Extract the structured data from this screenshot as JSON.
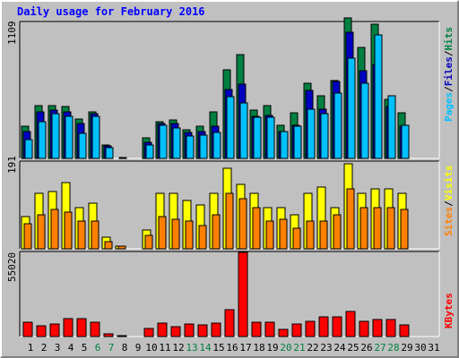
{
  "title": "Daily usage for February 2016",
  "colors": {
    "hits": "#008040",
    "files": "#0000c0",
    "pages": "#00c0ff",
    "visits": "#ffff00",
    "sites": "#ff8000",
    "kbytes": "#ff0000",
    "weekend_label": "#008040",
    "weekday_label": "#000000",
    "panel_bg": "#c0c0c0"
  },
  "chart_data": [
    {
      "type": "bar",
      "title": "Daily usage for February 2016",
      "panel": "top",
      "ylabel_parts": [
        "Pages",
        "/",
        "Files",
        "/",
        "Hits"
      ],
      "ytick_label": "1109",
      "ylim": [
        0,
        1109
      ],
      "categories": [
        "1",
        "2",
        "3",
        "4",
        "5",
        "6",
        "7",
        "8",
        "9",
        "10",
        "11",
        "12",
        "13",
        "14",
        "15",
        "16",
        "17",
        "18",
        "19",
        "20",
        "21",
        "22",
        "23",
        "24",
        "25",
        "26",
        "27",
        "28",
        "29",
        "30",
        "31"
      ],
      "series": [
        {
          "name": "Hits",
          "color_key": "hits",
          "values": [
            260,
            430,
            430,
            420,
            320,
            380,
            110,
            0,
            0,
            170,
            300,
            310,
            230,
            260,
            380,
            720,
            840,
            390,
            430,
            270,
            370,
            610,
            510,
            630,
            1140,
            900,
            1090,
            480,
            370,
            0,
            0
          ]
        },
        {
          "name": "Files",
          "color_key": "files",
          "values": [
            220,
            380,
            390,
            380,
            280,
            360,
            100,
            0,
            0,
            130,
            280,
            280,
            210,
            220,
            260,
            560,
            600,
            340,
            350,
            220,
            270,
            550,
            400,
            620,
            1020,
            710,
            760,
            420,
            260,
            0,
            0
          ]
        },
        {
          "name": "Pages",
          "color_key": "pages",
          "values": [
            150,
            300,
            360,
            340,
            200,
            340,
            90,
            10,
            0,
            110,
            270,
            250,
            180,
            190,
            210,
            500,
            450,
            330,
            330,
            220,
            260,
            400,
            360,
            530,
            810,
            610,
            1000,
            510,
            270,
            0,
            0
          ]
        }
      ]
    },
    {
      "type": "bar",
      "panel": "middle",
      "ylabel_parts": [
        "Sites",
        "/",
        "Visits"
      ],
      "ytick_label": "191",
      "ylim": [
        0,
        191
      ],
      "categories": [
        "1",
        "2",
        "3",
        "4",
        "5",
        "6",
        "7",
        "8",
        "9",
        "10",
        "11",
        "12",
        "13",
        "14",
        "15",
        "16",
        "17",
        "18",
        "19",
        "20",
        "21",
        "22",
        "23",
        "24",
        "25",
        "26",
        "27",
        "28",
        "29",
        "30",
        "31"
      ],
      "series": [
        {
          "name": "Visits",
          "color_key": "visits",
          "values": [
            70,
            120,
            125,
            145,
            90,
            100,
            25,
            5,
            0,
            40,
            120,
            120,
            105,
            95,
            120,
            175,
            140,
            120,
            90,
            90,
            75,
            120,
            135,
            90,
            185,
            120,
            130,
            130,
            120,
            0,
            0
          ]
        },
        {
          "name": "Sites",
          "color_key": "sites",
          "values": [
            55,
            75,
            85,
            80,
            60,
            60,
            15,
            5,
            0,
            30,
            70,
            65,
            60,
            50,
            75,
            120,
            110,
            90,
            60,
            65,
            45,
            60,
            60,
            75,
            130,
            90,
            90,
            90,
            85,
            0,
            0
          ]
        }
      ]
    },
    {
      "type": "bar",
      "panel": "bottom",
      "ylabel_parts": [
        "KBytes"
      ],
      "ytick_label": "55020",
      "ylim": [
        0,
        55020
      ],
      "categories": [
        "1",
        "2",
        "3",
        "4",
        "5",
        "6",
        "7",
        "8",
        "9",
        "10",
        "11",
        "12",
        "13",
        "14",
        "15",
        "16",
        "17",
        "18",
        "19",
        "20",
        "21",
        "22",
        "23",
        "24",
        "25",
        "26",
        "27",
        "28",
        "29",
        "30",
        "31"
      ],
      "series": [
        {
          "name": "KBytes",
          "color_key": "kbytes",
          "values": [
            9000,
            7000,
            8000,
            11500,
            11500,
            9500,
            1500,
            800,
            0,
            5500,
            8500,
            6500,
            8000,
            7500,
            8500,
            17500,
            54500,
            9000,
            9000,
            4500,
            8000,
            10000,
            12500,
            12500,
            16000,
            10000,
            11000,
            11000,
            7500,
            0,
            0
          ]
        }
      ]
    }
  ],
  "weekend_days": [
    "6",
    "7",
    "13",
    "14",
    "20",
    "21",
    "27",
    "28"
  ]
}
